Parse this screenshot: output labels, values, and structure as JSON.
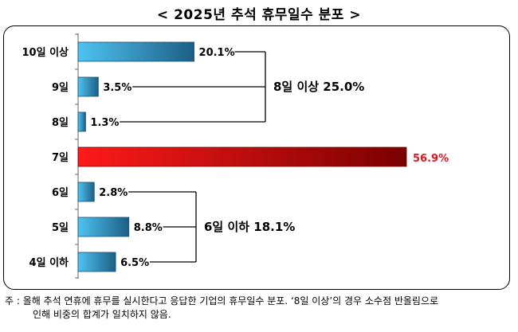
{
  "title": "< 2025년 추석 휴무일수 분포 >",
  "note": {
    "line1": "주 : 올해 추석 연휴에 휴무를 실시한다고 응답한 기업의 휴무일수 분포. ‘8일 이상’의 경우 소수점 반올림으로",
    "line2": "인해 비중의 합계가 일치하지 않음."
  },
  "colors": {
    "bar_light": "#4fc3f0",
    "bar_dark": "#1c5f86",
    "highlight_light": "#ff1a1a",
    "highlight_dark": "#7a0000",
    "highlight_text": "#e8141c",
    "bracket": "#000000"
  },
  "chart_data": {
    "type": "bar",
    "orientation": "horizontal",
    "title": "< 2025년 추석 휴무일수 분포 >",
    "categories": [
      "10일 이상",
      "9일",
      "8일",
      "7일",
      "6일",
      "5일",
      "4일 이하"
    ],
    "values": [
      20.1,
      3.5,
      1.3,
      56.9,
      2.8,
      8.8,
      6.5
    ],
    "value_labels": [
      "20.1%",
      "3.5%",
      "1.3%",
      "56.9%",
      "2.8%",
      "8.8%",
      "6.5%"
    ],
    "highlight_index": 3,
    "unit": "%",
    "xlim": [
      0,
      60
    ],
    "grid": false,
    "groups": [
      {
        "label": "8일 이상 25.0%",
        "indices": [
          0,
          1,
          2
        ]
      },
      {
        "label": "6일 이하 18.1%",
        "indices": [
          4,
          5,
          6
        ]
      }
    ]
  }
}
